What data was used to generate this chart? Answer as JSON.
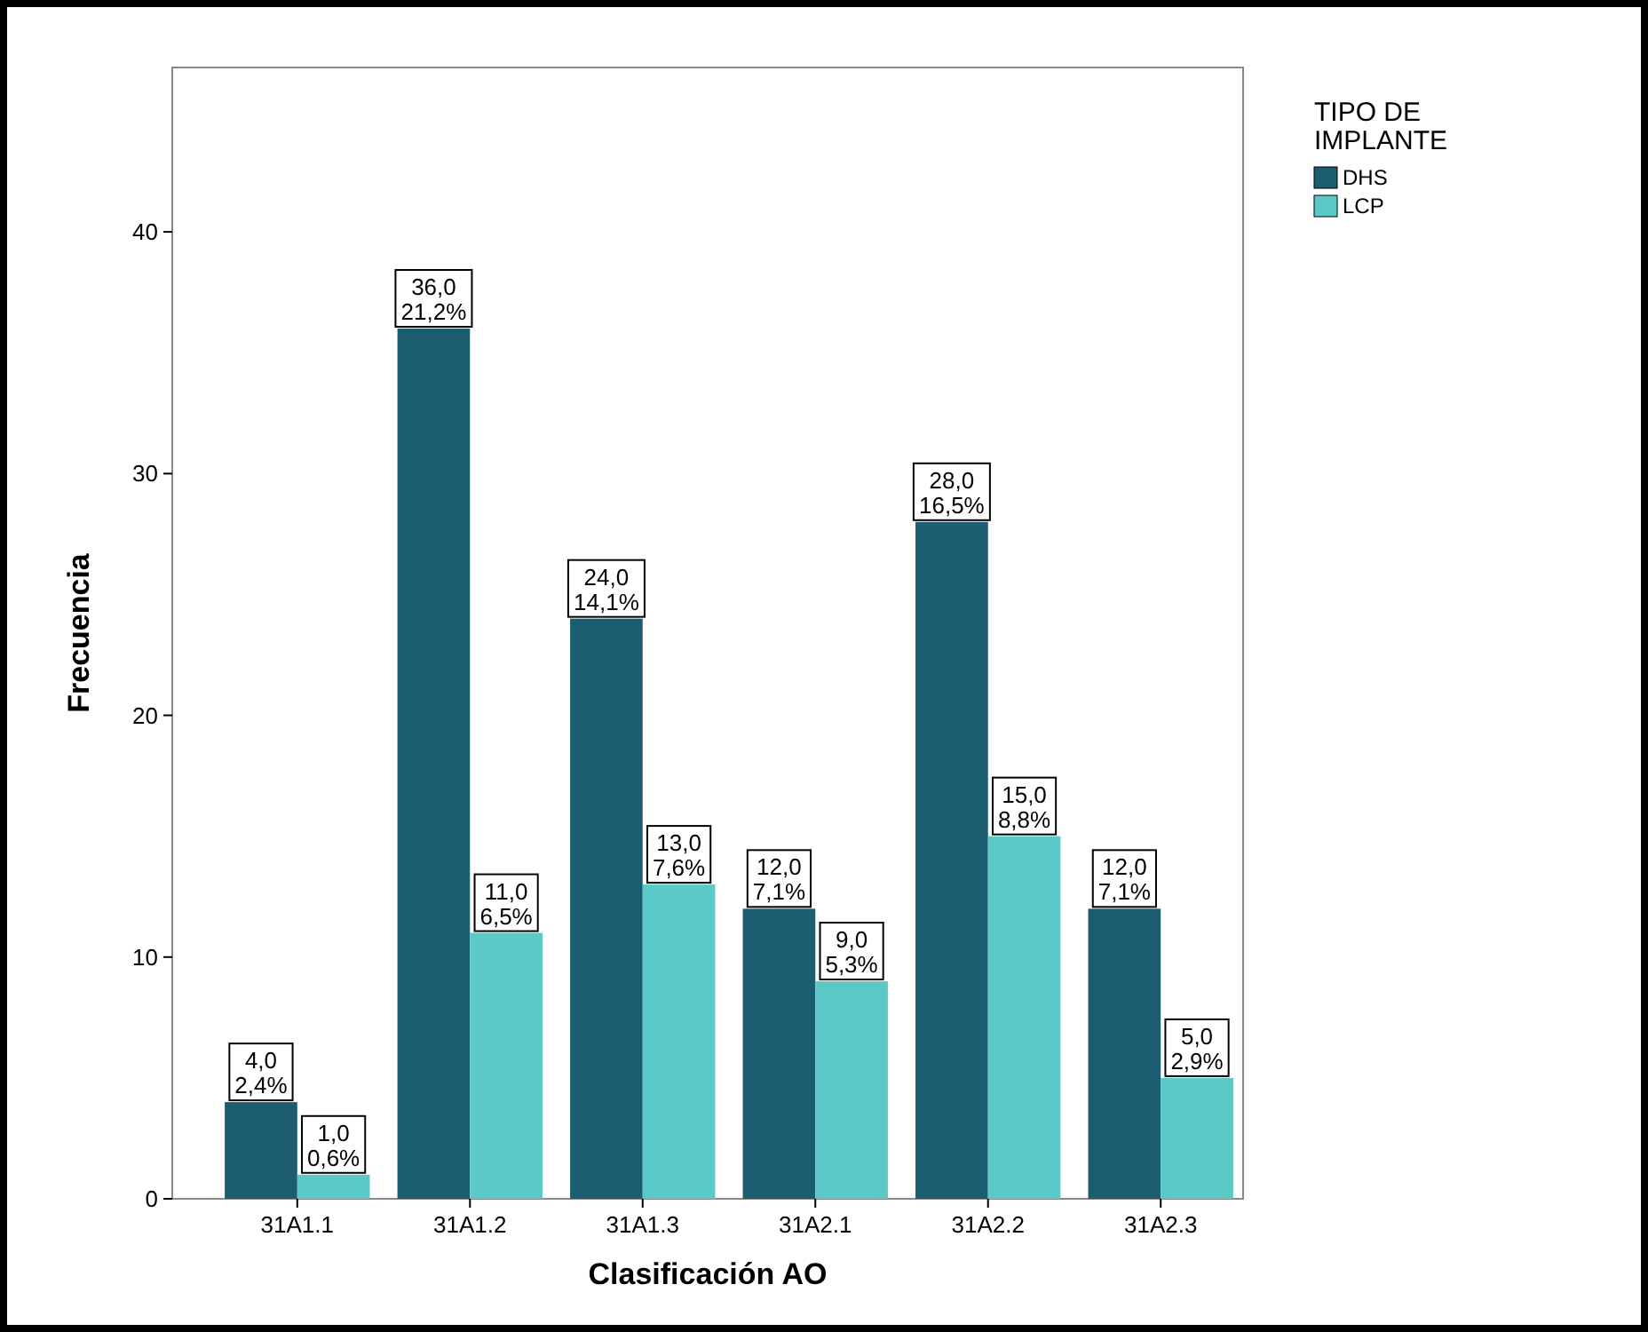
{
  "chart_data": {
    "type": "bar",
    "xlabel": "Clasificación AO",
    "ylabel": "Frecuencia",
    "legend_title": "TIPO DE IMPLANTE",
    "legend": "top right",
    "categories": [
      "31A1.1",
      "31A1.2",
      "31A1.3",
      "31A2.1",
      "31A2.2",
      "31A2.3"
    ],
    "ylim": [
      0,
      46.8
    ],
    "yticks": [
      0,
      10,
      20,
      30,
      40
    ],
    "grid": false,
    "series": [
      {
        "name": "DHS",
        "color": "#1d5d72",
        "values": [
          4,
          36,
          24,
          12,
          28,
          12
        ],
        "value_labels": [
          "4,0\n2,4%",
          "36,0\n21,2%",
          "24,0\n14,1%",
          "12,0\n7,1%",
          "28,0\n16,5%",
          "12,0\n7,1%"
        ]
      },
      {
        "name": "LCP",
        "color": "#5bc9c8",
        "values": [
          1,
          11,
          13,
          9,
          15,
          5
        ],
        "value_labels": [
          "1,0\n0,6%",
          "11,0\n6,5%",
          "13,0\n7,6%",
          "9,0\n5,3%",
          "15,0\n8,8%",
          "5,0\n2,9%"
        ]
      }
    ]
  }
}
